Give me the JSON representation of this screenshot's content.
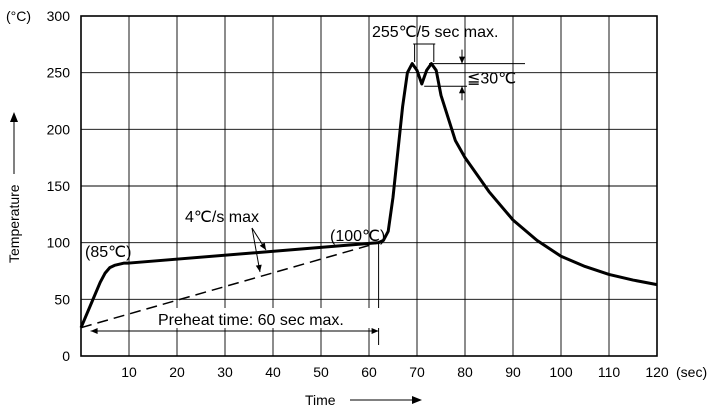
{
  "chart_data": {
    "type": "line",
    "title": "",
    "xlabel": "Time",
    "ylabel": "Temperature",
    "x_unit": "(sec)",
    "y_unit": "(°C)",
    "xlim": [
      0,
      120
    ],
    "ylim": [
      0,
      300
    ],
    "x_ticks": [
      10,
      20,
      30,
      40,
      50,
      60,
      70,
      80,
      90,
      100,
      110,
      120
    ],
    "y_ticks": [
      0,
      50,
      100,
      150,
      200,
      250,
      300
    ],
    "grid": true,
    "series": [
      {
        "style": "solid",
        "x": [
          0,
          2,
          4,
          5,
          6,
          7,
          8,
          9,
          10,
          62,
          63,
          64,
          65,
          66,
          67,
          68,
          69,
          70,
          71,
          72,
          73,
          74,
          75,
          78,
          80,
          85,
          90,
          95,
          100,
          105,
          110,
          115,
          120
        ],
        "y": [
          25,
          45,
          65,
          73,
          78,
          80,
          81,
          82,
          82,
          100,
          102,
          110,
          140,
          180,
          220,
          250,
          258,
          252,
          240,
          252,
          258,
          252,
          230,
          190,
          175,
          145,
          120,
          102,
          88,
          79,
          72,
          67,
          63
        ]
      },
      {
        "style": "dashed",
        "x": [
          0,
          62
        ],
        "y": [
          25,
          100
        ]
      }
    ],
    "annotations": {
      "peak": "255℃/5 sec max.",
      "dip": "≦30℃",
      "ramp": "4℃/s max",
      "point_85": "(85℃)",
      "point_100": "(100℃)",
      "preheat": "Preheat time: 60 sec max."
    }
  }
}
